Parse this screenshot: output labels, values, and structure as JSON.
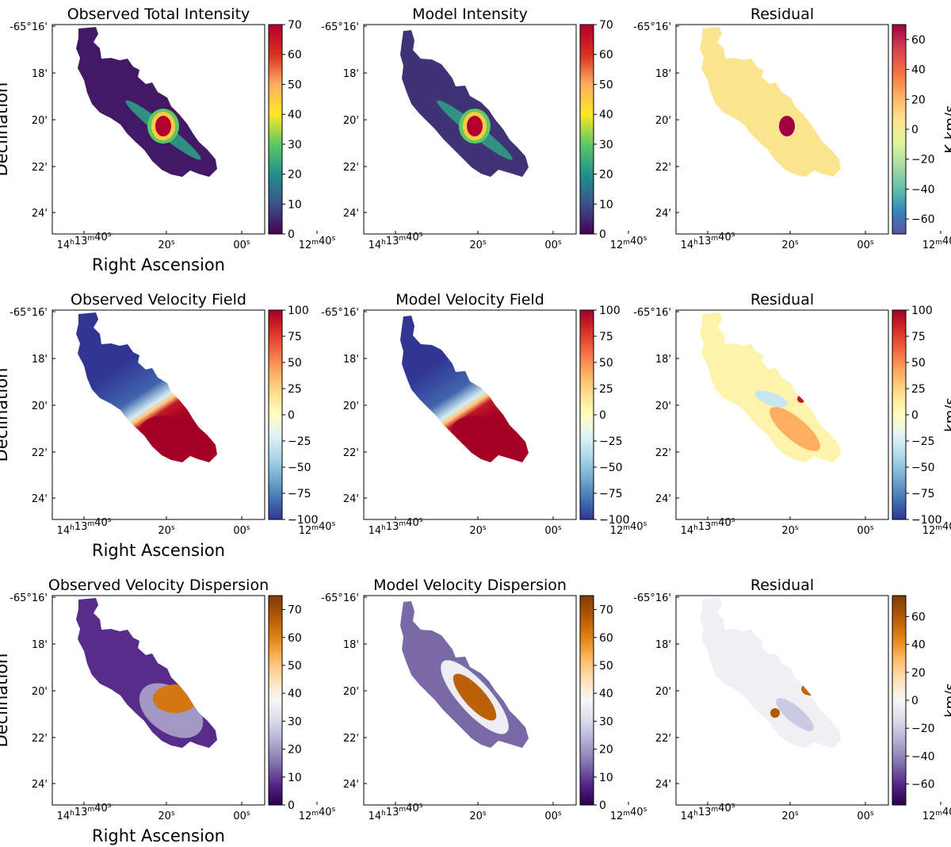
{
  "figure": {
    "xlabel": "Right Ascension",
    "ylabel": "Declination",
    "x_ticks": [
      [
        "14",
        "h",
        "13",
        "m",
        "40",
        "s"
      ],
      [
        "20",
        "s",
        "",
        "",
        "",
        ""
      ],
      [
        "00",
        "s",
        "",
        "",
        "",
        ""
      ],
      [
        "12",
        "m",
        "40",
        "s",
        "",
        ""
      ]
    ],
    "y_ticks": [
      "-65°16'",
      "18'",
      "20'",
      "22'",
      "24'"
    ]
  },
  "chart_data": [
    {
      "type": "heatmap",
      "title": "Observed Total Intensity",
      "row": 0,
      "col": 0,
      "map": "intensity",
      "colormap": "viridis",
      "vmin": 0,
      "vmax": 70,
      "cbar_ticks": [
        "0",
        "10",
        "20",
        "30",
        "40",
        "50",
        "60",
        "70"
      ],
      "cbar_label": "",
      "show_xlabel": true,
      "show_ylabel": true
    },
    {
      "type": "heatmap",
      "title": "Model Intensity",
      "row": 0,
      "col": 1,
      "map": "model-intensity",
      "colormap": "viridis",
      "vmin": 0,
      "vmax": 70,
      "cbar_ticks": [
        "0",
        "10",
        "20",
        "30",
        "40",
        "50",
        "60",
        "70"
      ],
      "cbar_label": "",
      "show_xlabel": false,
      "show_ylabel": false
    },
    {
      "type": "heatmap",
      "title": "Residual",
      "row": 0,
      "col": 2,
      "map": "residual-intensity",
      "colormap": "spectral",
      "vmin": -70,
      "vmax": 70,
      "cbar_ticks": [
        "−60",
        "−40",
        "−20",
        "0",
        "20",
        "40",
        "60"
      ],
      "cbar_label": "K km/s",
      "show_xlabel": false,
      "show_ylabel": false
    },
    {
      "type": "heatmap",
      "title": "Observed Velocity Field",
      "row": 1,
      "col": 0,
      "map": "velocity",
      "colormap": "rdylbu",
      "vmin": -100,
      "vmax": 100,
      "cbar_ticks": [
        "−100",
        "−75",
        "−50",
        "−25",
        "0",
        "25",
        "50",
        "75",
        "100"
      ],
      "cbar_label": "",
      "show_xlabel": true,
      "show_ylabel": true
    },
    {
      "type": "heatmap",
      "title": "Model Velocity Field",
      "row": 1,
      "col": 1,
      "map": "model-velocity",
      "colormap": "rdylbu",
      "vmin": -100,
      "vmax": 100,
      "cbar_ticks": [
        "−100",
        "−75",
        "−50",
        "−25",
        "0",
        "25",
        "50",
        "75",
        "100"
      ],
      "cbar_label": "",
      "show_xlabel": false,
      "show_ylabel": false
    },
    {
      "type": "heatmap",
      "title": "Residual",
      "row": 1,
      "col": 2,
      "map": "residual-velocity",
      "colormap": "rdylbu",
      "vmin": -100,
      "vmax": 100,
      "cbar_ticks": [
        "−100",
        "−75",
        "−50",
        "−25",
        "0",
        "25",
        "50",
        "75",
        "100"
      ],
      "cbar_label": "km/s",
      "show_xlabel": false,
      "show_ylabel": false
    },
    {
      "type": "heatmap",
      "title": "Observed Velocity Dispersion",
      "row": 2,
      "col": 0,
      "map": "dispersion",
      "colormap": "puor",
      "vmin": 0,
      "vmax": 75,
      "cbar_ticks": [
        "0",
        "10",
        "20",
        "30",
        "40",
        "50",
        "60",
        "70"
      ],
      "cbar_label": "",
      "show_xlabel": true,
      "show_ylabel": true
    },
    {
      "type": "heatmap",
      "title": "Model Velocity Dispersion",
      "row": 2,
      "col": 1,
      "map": "model-dispersion",
      "colormap": "puor",
      "vmin": 0,
      "vmax": 75,
      "cbar_ticks": [
        "0",
        "10",
        "20",
        "30",
        "40",
        "50",
        "60",
        "70"
      ],
      "cbar_label": "",
      "show_xlabel": false,
      "show_ylabel": false
    },
    {
      "type": "heatmap",
      "title": "Residual",
      "row": 2,
      "col": 2,
      "map": "residual-dispersion",
      "colormap": "puor",
      "vmin": -75,
      "vmax": 75,
      "cbar_ticks": [
        "−60",
        "−40",
        "−20",
        "0",
        "20",
        "40",
        "60"
      ],
      "cbar_label": "km/s",
      "show_xlabel": false,
      "show_ylabel": false
    }
  ],
  "colormaps": {
    "viridis": [
      "#440154",
      "#3b528b",
      "#21918c",
      "#5ec962",
      "#fde725",
      "#fdae61",
      "#d7301f",
      "#b2002e"
    ],
    "spectral": [
      "#5e4fa2",
      "#3288bd",
      "#66c2a5",
      "#abdda4",
      "#e6f598",
      "#fee08b",
      "#fdae61",
      "#f46d43",
      "#d53e4f",
      "#9e0142"
    ],
    "rdylbu": [
      "#313695",
      "#4575b4",
      "#74add1",
      "#abd9e9",
      "#e0f3f8",
      "#ffffbf",
      "#fee090",
      "#fdae61",
      "#f46d43",
      "#d73027",
      "#a50026"
    ],
    "puor": [
      "#2d004b",
      "#542788",
      "#8073ac",
      "#b2abd2",
      "#d8daeb",
      "#f7f7f7",
      "#fee0b6",
      "#fdb863",
      "#e08214",
      "#b35806",
      "#7f3b08"
    ]
  }
}
